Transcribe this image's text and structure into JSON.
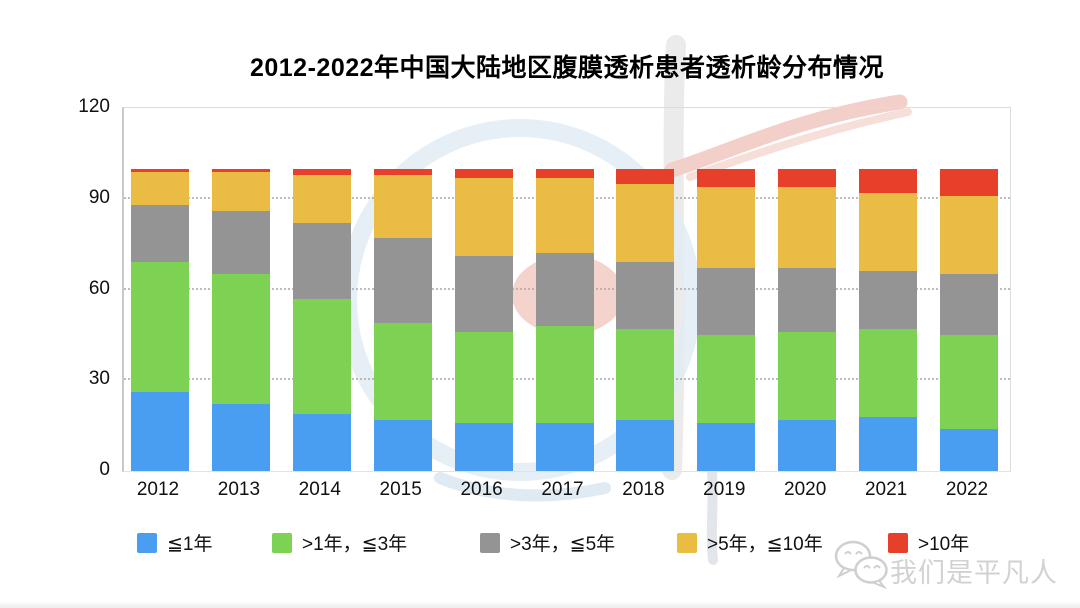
{
  "chart_data": {
    "type": "bar",
    "stacked": true,
    "title": "2012-2022年中国大陆地区腹膜透析患者透析龄分布情况",
    "categories": [
      "2012",
      "2013",
      "2014",
      "2015",
      "2016",
      "2017",
      "2018",
      "2019",
      "2020",
      "2021",
      "2022"
    ],
    "series": [
      {
        "name": "≦1年",
        "color": "#4A9EF2",
        "values": [
          26,
          22,
          19,
          17,
          16,
          16,
          17,
          16,
          17,
          18,
          14
        ]
      },
      {
        "name": ">1年，≦3年",
        "color": "#7DD254",
        "values": [
          43,
          43,
          38,
          32,
          30,
          32,
          30,
          29,
          29,
          29,
          31
        ]
      },
      {
        "name": ">3年，≦5年",
        "color": "#949494",
        "values": [
          19,
          21,
          25,
          28,
          25,
          24,
          22,
          22,
          21,
          19,
          20
        ]
      },
      {
        "name": ">5年，≦10年",
        "color": "#EBBC44",
        "values": [
          11,
          13,
          16,
          21,
          26,
          25,
          26,
          27,
          27,
          26,
          26
        ]
      },
      {
        "name": ">10年",
        "color": "#E6402B",
        "values": [
          1,
          1,
          2,
          2,
          3,
          3,
          5,
          6,
          6,
          8,
          9
        ]
      }
    ],
    "ylim": [
      0,
      120
    ],
    "yticks": [
      0,
      30,
      60,
      90,
      120
    ],
    "grid": "horizontal-dotted",
    "legend_position": "bottom",
    "bar_totals": 100
  },
  "watermark": {
    "text": "我们是平凡人",
    "icon": "wechat-icon",
    "color": "#d2d2d2"
  }
}
